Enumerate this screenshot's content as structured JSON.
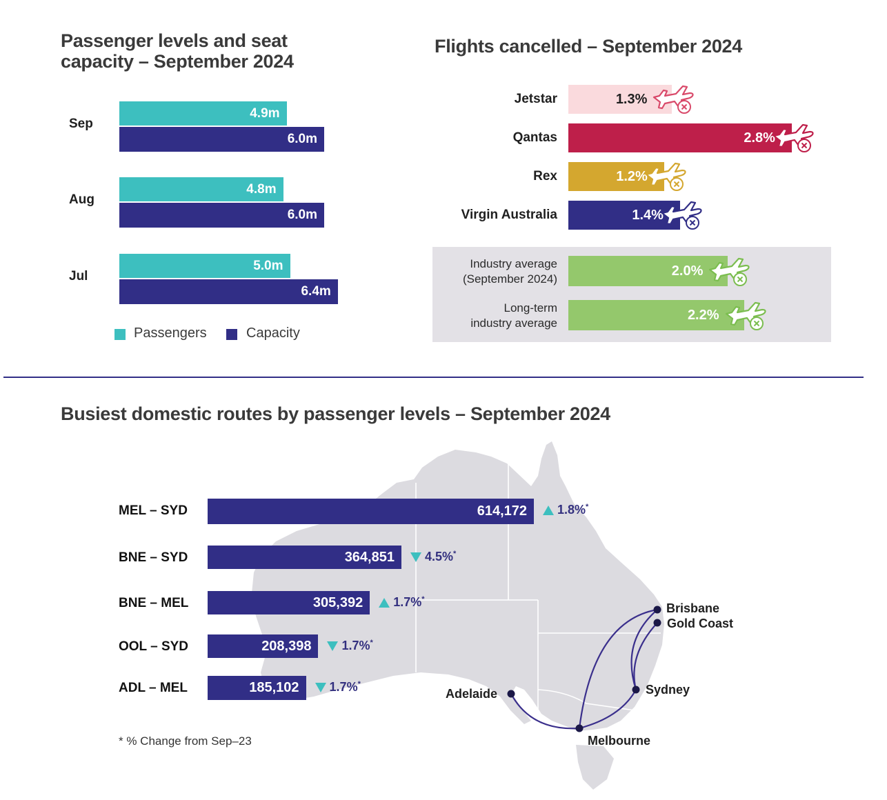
{
  "colors": {
    "passengers": "#3dbfbf",
    "capacity": "#312e86",
    "jetstar": "#fadadd",
    "qantas": "#be1f4a",
    "rex": "#d4a72f",
    "virgin": "#312e86",
    "industry": "#94c86c",
    "panel": "#e3e1e6",
    "map": "#dcdbe0",
    "divider": "#312e86",
    "up": "#3dbfbf",
    "down": "#3dbfbf"
  },
  "passengers_chart": {
    "title_line1": "Passenger levels and seat",
    "title_line2": "capacity – September 2024",
    "legend": {
      "passengers": "Passengers",
      "capacity": "Capacity"
    },
    "chart_data": {
      "type": "bar",
      "orientation": "horizontal",
      "categories": [
        "Sep",
        "Aug",
        "Jul"
      ],
      "series": [
        {
          "name": "Passengers",
          "values": [
            4.9,
            4.8,
            5.0
          ],
          "labels": [
            "4.9m",
            "4.8m",
            "5.0m"
          ]
        },
        {
          "name": "Capacity",
          "values": [
            6.0,
            6.0,
            6.4
          ],
          "labels": [
            "6.0m",
            "6.0m",
            "6.4m"
          ]
        }
      ],
      "legend": "bottom"
    }
  },
  "cancelled_chart": {
    "title": "Flights cancelled – September 2024",
    "chart_data": {
      "type": "bar",
      "orientation": "horizontal",
      "categories": [
        "Jetstar",
        "Qantas",
        "Rex",
        "Virgin Australia"
      ],
      "values": [
        1.3,
        2.8,
        1.2,
        1.4
      ],
      "labels": [
        "1.3%",
        "2.8%",
        "1.2%",
        "1.4%"
      ]
    },
    "averages": [
      {
        "line1": "Industry average",
        "line2": "(September 2024)",
        "value": 2.0,
        "label": "2.0%"
      },
      {
        "line1": "Long-term",
        "line2": "industry average",
        "value": 2.2,
        "label": "2.2%"
      }
    ]
  },
  "routes_chart": {
    "title": "Busiest domestic routes by passenger levels – September 2024",
    "footnote": "* % Change from Sep–23",
    "chart_data": {
      "type": "bar",
      "orientation": "horizontal",
      "categories": [
        "MEL – SYD",
        "BNE – SYD",
        "BNE – MEL",
        "OOL – SYD",
        "ADL – MEL"
      ],
      "values": [
        614172,
        364851,
        305392,
        208398,
        185102
      ],
      "labels": [
        "614,172",
        "364,851",
        "305,392",
        "208,398",
        "185,102"
      ],
      "change": [
        {
          "direction": "up",
          "label": "1.8%",
          "mark": "*"
        },
        {
          "direction": "down",
          "label": "4.5%",
          "mark": "*"
        },
        {
          "direction": "up",
          "label": "1.7%",
          "mark": "*"
        },
        {
          "direction": "down",
          "label": "1.7%",
          "mark": "*"
        },
        {
          "direction": "down",
          "label": "1.7%",
          "mark": "*"
        }
      ]
    },
    "cities": {
      "brisbane": "Brisbane",
      "gold_coast": "Gold Coast",
      "sydney": "Sydney",
      "adelaide": "Adelaide",
      "melbourne": "Melbourne"
    }
  }
}
